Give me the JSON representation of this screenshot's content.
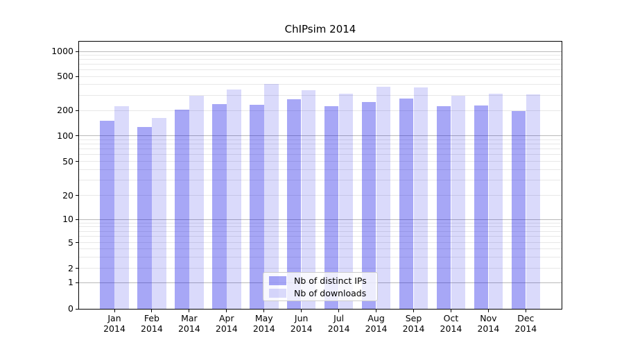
{
  "chart_data": {
    "type": "bar",
    "title": "ChIPsim 2014",
    "categories": [
      "Jan",
      "Feb",
      "Mar",
      "Apr",
      "May",
      "Jun",
      "Jul",
      "Aug",
      "Sep",
      "Oct",
      "Nov",
      "Dec"
    ],
    "category_year": "2014",
    "series": [
      {
        "name": "Nb of distinct IPs",
        "color": "rgba(10,10,230,0.36)",
        "values": [
          150,
          127,
          202,
          236,
          232,
          270,
          225,
          251,
          273,
          222,
          229,
          196
        ]
      },
      {
        "name": "Nb of downloads",
        "color": "rgba(10,10,230,0.15)",
        "values": [
          224,
          162,
          295,
          352,
          405,
          344,
          312,
          375,
          369,
          297,
          314,
          310
        ]
      }
    ],
    "yscale": "symlog",
    "yticks": [
      0,
      1,
      2,
      5,
      10,
      20,
      50,
      100,
      200,
      500,
      1000
    ],
    "ylim": [
      0,
      1000
    ],
    "xlabel": "",
    "ylabel": "",
    "grid": true,
    "legend_position": "lower center"
  }
}
